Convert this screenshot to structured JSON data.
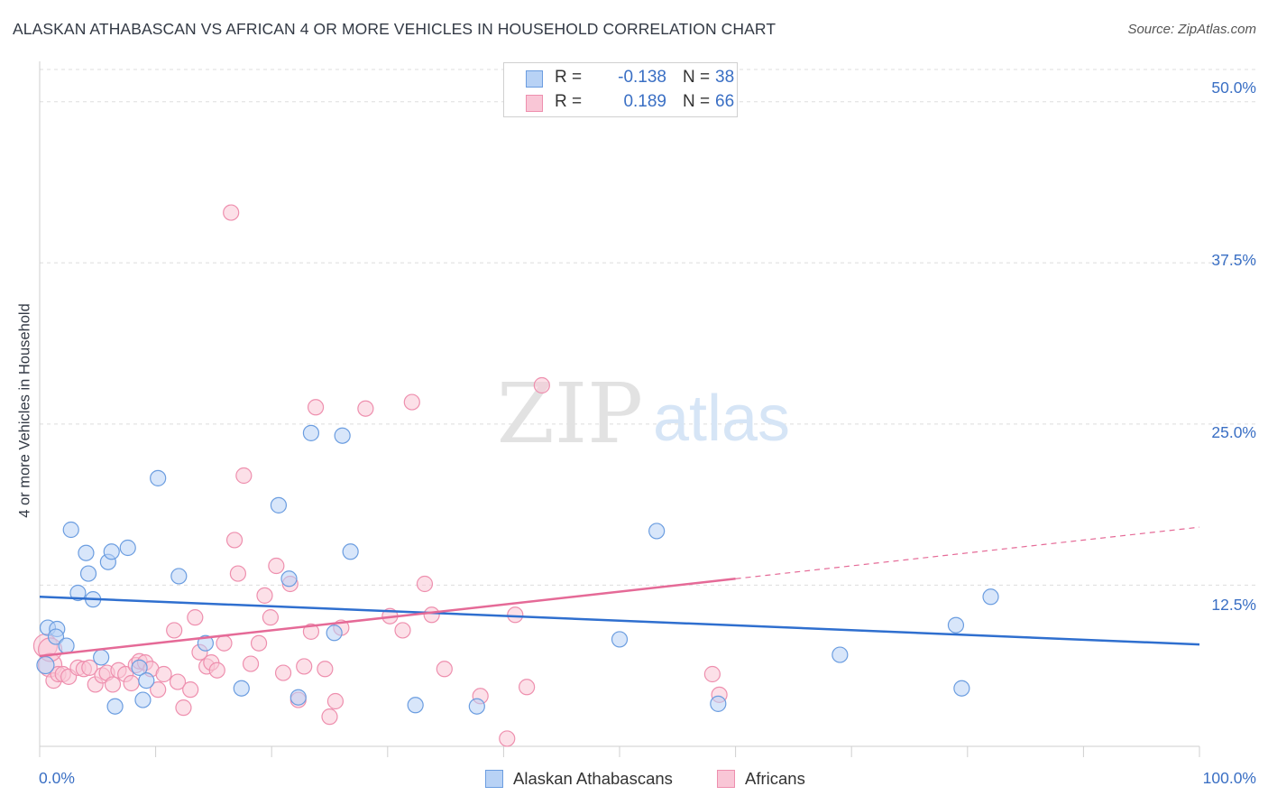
{
  "title": "ALASKAN ATHABASCAN VS AFRICAN 4 OR MORE VEHICLES IN HOUSEHOLD CORRELATION CHART",
  "source": "Source: ZipAtlas.com",
  "watermark": {
    "zip": "ZIP",
    "atlas": "atlas"
  },
  "colors": {
    "blue_fill": "#b8d2f5",
    "blue_stroke": "#6b9de0",
    "blue_line": "#2f6fcf",
    "pink_fill": "#f9c6d6",
    "pink_stroke": "#ee8fae",
    "pink_line": "#e56a97",
    "tick_text": "#3a6fc4",
    "grid": "#dddddd"
  },
  "legend_top": [
    {
      "label": "R =",
      "r_value": "-0.138",
      "n_label": "N =",
      "n_value": "38"
    },
    {
      "label": "R =",
      "r_value": "0.189",
      "n_label": "N =",
      "n_value": "66"
    }
  ],
  "chart_data": {
    "type": "scatter",
    "title": "ALASKAN ATHABASCAN VS AFRICAN 4 OR MORE VEHICLES IN HOUSEHOLD CORRELATION CHART",
    "xlabel": "",
    "ylabel": "4 or more Vehicles in Household",
    "xlim": [
      0,
      100
    ],
    "ylim": [
      0,
      50
    ],
    "x_tick_labels": [
      "0.0%",
      "100.0%"
    ],
    "y_ticks": [
      12.5,
      25.0,
      37.5,
      50.0
    ],
    "y_tick_labels": [
      "12.5%",
      "25.0%",
      "37.5%",
      "50.0%"
    ],
    "grid": true,
    "legend_position": "bottom-center",
    "series": [
      {
        "name": "Alaskan Athabascans",
        "color": "#6b9de0",
        "r": -0.138,
        "n": 38,
        "points": [
          [
            0.5,
            6.3
          ],
          [
            0.7,
            9.2
          ],
          [
            1.5,
            9.1
          ],
          [
            1.4,
            8.5
          ],
          [
            2.3,
            7.8
          ],
          [
            2.7,
            16.8
          ],
          [
            3.3,
            11.9
          ],
          [
            4.0,
            15.0
          ],
          [
            4.2,
            13.4
          ],
          [
            4.6,
            11.4
          ],
          [
            5.3,
            6.9
          ],
          [
            5.9,
            14.3
          ],
          [
            6.2,
            15.1
          ],
          [
            6.5,
            3.1
          ],
          [
            7.6,
            15.4
          ],
          [
            8.6,
            6.1
          ],
          [
            8.9,
            3.6
          ],
          [
            9.2,
            5.1
          ],
          [
            10.2,
            20.8
          ],
          [
            12.0,
            13.2
          ],
          [
            14.3,
            8.0
          ],
          [
            17.4,
            4.5
          ],
          [
            20.6,
            18.7
          ],
          [
            21.5,
            13.0
          ],
          [
            22.3,
            3.8
          ],
          [
            23.4,
            24.3
          ],
          [
            25.4,
            8.8
          ],
          [
            26.1,
            24.1
          ],
          [
            26.8,
            15.1
          ],
          [
            32.4,
            3.2
          ],
          [
            37.7,
            3.1
          ],
          [
            50.0,
            8.3
          ],
          [
            53.2,
            16.7
          ],
          [
            58.5,
            3.3
          ],
          [
            69.0,
            7.1
          ],
          [
            79.0,
            9.4
          ],
          [
            79.5,
            4.5
          ],
          [
            82.0,
            11.6
          ]
        ],
        "trend": {
          "x0": 0,
          "y0": 11.6,
          "x1": 100,
          "y1": 7.9
        }
      },
      {
        "name": "Africans",
        "color": "#ee8fae",
        "r": 0.189,
        "n": 66,
        "points": [
          [
            0.5,
            7.8
          ],
          [
            0.9,
            6.3
          ],
          [
            1.2,
            5.1
          ],
          [
            1.6,
            5.6
          ],
          [
            2.0,
            5.6
          ],
          [
            2.5,
            5.4
          ],
          [
            3.3,
            6.1
          ],
          [
            3.8,
            6.0
          ],
          [
            4.3,
            6.1
          ],
          [
            4.8,
            4.8
          ],
          [
            5.4,
            5.5
          ],
          [
            5.8,
            5.7
          ],
          [
            6.3,
            4.8
          ],
          [
            6.8,
            5.9
          ],
          [
            7.4,
            5.6
          ],
          [
            7.9,
            4.9
          ],
          [
            8.3,
            6.3
          ],
          [
            8.6,
            6.6
          ],
          [
            9.1,
            6.5
          ],
          [
            9.6,
            6.0
          ],
          [
            10.2,
            4.4
          ],
          [
            10.7,
            5.6
          ],
          [
            11.6,
            9.0
          ],
          [
            11.9,
            5.0
          ],
          [
            12.4,
            3.0
          ],
          [
            13.0,
            4.4
          ],
          [
            13.4,
            10.0
          ],
          [
            13.8,
            7.3
          ],
          [
            14.4,
            6.2
          ],
          [
            14.8,
            6.5
          ],
          [
            15.3,
            5.9
          ],
          [
            15.9,
            8.0
          ],
          [
            16.5,
            41.4
          ],
          [
            16.8,
            16.0
          ],
          [
            17.1,
            13.4
          ],
          [
            17.6,
            21.0
          ],
          [
            18.2,
            6.4
          ],
          [
            18.9,
            8.0
          ],
          [
            19.4,
            11.7
          ],
          [
            19.9,
            10.0
          ],
          [
            20.4,
            14.0
          ],
          [
            21.0,
            5.7
          ],
          [
            21.6,
            12.6
          ],
          [
            22.3,
            3.6
          ],
          [
            22.8,
            6.2
          ],
          [
            23.4,
            8.9
          ],
          [
            23.8,
            26.3
          ],
          [
            24.6,
            6.0
          ],
          [
            25.0,
            2.3
          ],
          [
            25.5,
            3.5
          ],
          [
            26.0,
            9.2
          ],
          [
            28.1,
            26.2
          ],
          [
            30.2,
            10.1
          ],
          [
            31.3,
            9.0
          ],
          [
            32.1,
            26.7
          ],
          [
            33.2,
            12.6
          ],
          [
            33.8,
            10.2
          ],
          [
            34.9,
            6.0
          ],
          [
            38.0,
            3.9
          ],
          [
            40.3,
            0.6
          ],
          [
            41.0,
            10.2
          ],
          [
            42.0,
            4.6
          ],
          [
            43.3,
            28.0
          ],
          [
            58.0,
            5.6
          ],
          [
            58.6,
            4.0
          ],
          [
            0.9,
            7.5
          ]
        ],
        "trend_solid": {
          "x0": 0,
          "y0": 7.0,
          "x1": 60,
          "y1": 13.0
        },
        "trend_dashed": {
          "x0": 60,
          "y0": 13.0,
          "x1": 100,
          "y1": 17.0
        }
      }
    ]
  },
  "legend_bottom": [
    {
      "label": "Alaskan Athabascans"
    },
    {
      "label": "Africans"
    }
  ]
}
